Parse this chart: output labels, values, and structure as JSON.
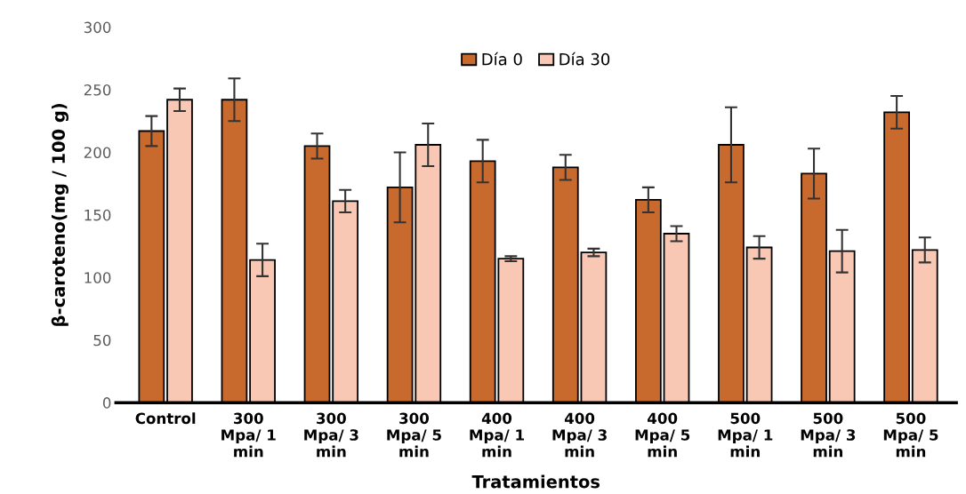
{
  "chart_data": {
    "type": "bar",
    "xlabel": "Tratamientos",
    "ylabel": "β-caroteno(mg / 100 g)",
    "categories": [
      "Control",
      "300\nMpa/ 1\nmin",
      "300\nMpa/ 3\nmin",
      "300\nMpa/ 5\nmin",
      "400\nMpa/ 1\nmin",
      "400\nMpa/ 3\nmin",
      "400\nMpa/ 5\nmin",
      "500\nMpa/ 1\nmin",
      "500\nMpa/ 3\nmin",
      "500\nMpa/ 5\nmin"
    ],
    "series": [
      {
        "name": "Día 0",
        "color": "#c8692e",
        "values": [
          217,
          242,
          205,
          172,
          193,
          188,
          162,
          206,
          183,
          232
        ],
        "errors": [
          12,
          17,
          10,
          28,
          17,
          10,
          10,
          30,
          20,
          13
        ]
      },
      {
        "name": "Día 30",
        "color": "#f8c8b4",
        "values": [
          242,
          114,
          161,
          206,
          115,
          120,
          135,
          124,
          121,
          122
        ],
        "errors": [
          9,
          13,
          9,
          17,
          2,
          3,
          6,
          9,
          17,
          10
        ]
      }
    ],
    "ylim": [
      0,
      300
    ],
    "yticks": [
      0,
      50,
      100,
      150,
      200,
      250,
      300
    ],
    "grid": false,
    "legend": "top"
  }
}
